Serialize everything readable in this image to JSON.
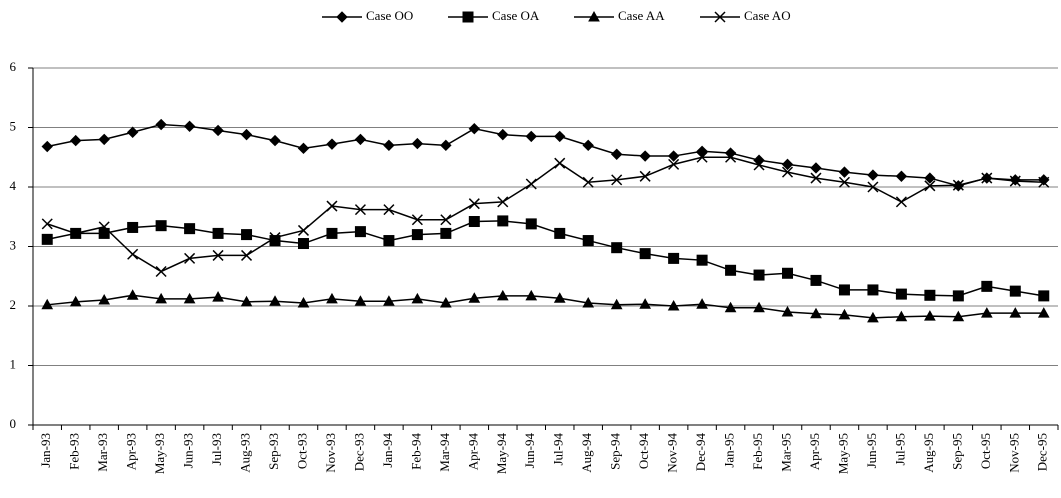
{
  "chart_data": {
    "type": "line",
    "categories": [
      "Jan-93",
      "Feb-93",
      "Mar-93",
      "Apr-93",
      "May-93",
      "Jun-93",
      "Jul-93",
      "Aug-93",
      "Sep-93",
      "Oct-93",
      "Nov-93",
      "Dec-93",
      "Jan-94",
      "Feb-94",
      "Mar-94",
      "Apr-94",
      "May-94",
      "Jun-94",
      "Jul-94",
      "Aug-94",
      "Sep-94",
      "Oct-94",
      "Nov-94",
      "Dec-94",
      "Jan-95",
      "Feb-95",
      "Mar-95",
      "Apr-95",
      "May-95",
      "Jun-95",
      "Jul-95",
      "Aug-95",
      "Sep-95",
      "Oct-95",
      "Nov-95",
      "Dec-95"
    ],
    "series": [
      {
        "name": "Case OO",
        "color": "#000000",
        "marker": "diamond",
        "values": [
          4.68,
          4.78,
          4.8,
          4.92,
          5.05,
          5.02,
          4.95,
          4.88,
          4.78,
          4.65,
          4.72,
          4.8,
          4.7,
          4.73,
          4.7,
          4.98,
          4.88,
          4.85,
          4.85,
          4.7,
          4.55,
          4.52,
          4.52,
          4.6,
          4.57,
          4.45,
          4.38,
          4.32,
          4.25,
          4.2,
          4.18,
          4.15,
          4.02,
          4.15,
          4.12,
          4.12
        ]
      },
      {
        "name": "Case OA",
        "color": "#000000",
        "marker": "square",
        "values": [
          3.12,
          3.22,
          3.22,
          3.32,
          3.35,
          3.3,
          3.22,
          3.2,
          3.1,
          3.05,
          3.22,
          3.25,
          3.1,
          3.2,
          3.22,
          3.42,
          3.43,
          3.38,
          3.22,
          3.1,
          2.98,
          2.88,
          2.8,
          2.77,
          2.6,
          2.52,
          2.55,
          2.43,
          2.27,
          2.27,
          2.2,
          2.18,
          2.17,
          2.33,
          2.25,
          2.17
        ]
      },
      {
        "name": "Case AA",
        "color": "#000000",
        "marker": "triangle",
        "values": [
          2.02,
          2.07,
          2.1,
          2.18,
          2.12,
          2.12,
          2.15,
          2.07,
          2.08,
          2.05,
          2.12,
          2.08,
          2.08,
          2.12,
          2.05,
          2.13,
          2.17,
          2.17,
          2.13,
          2.05,
          2.02,
          2.03,
          2.0,
          2.03,
          1.97,
          1.97,
          1.9,
          1.87,
          1.85,
          1.8,
          1.82,
          1.83,
          1.82,
          1.88,
          1.88,
          1.88
        ]
      },
      {
        "name": "Case AO",
        "color": "#000000",
        "marker": "x",
        "values": [
          3.38,
          3.22,
          3.33,
          2.87,
          2.58,
          2.8,
          2.85,
          2.85,
          3.15,
          3.27,
          3.68,
          3.62,
          3.62,
          3.45,
          3.45,
          3.72,
          3.75,
          4.05,
          4.4,
          4.08,
          4.12,
          4.18,
          4.38,
          4.5,
          4.5,
          4.37,
          4.25,
          4.15,
          4.08,
          4.0,
          3.75,
          4.02,
          4.03,
          4.15,
          4.1,
          4.08
        ]
      }
    ],
    "ylim": [
      0,
      6
    ],
    "yticks": [
      0,
      1,
      2,
      3,
      4,
      5,
      6
    ],
    "grid": true,
    "legend": "top"
  }
}
